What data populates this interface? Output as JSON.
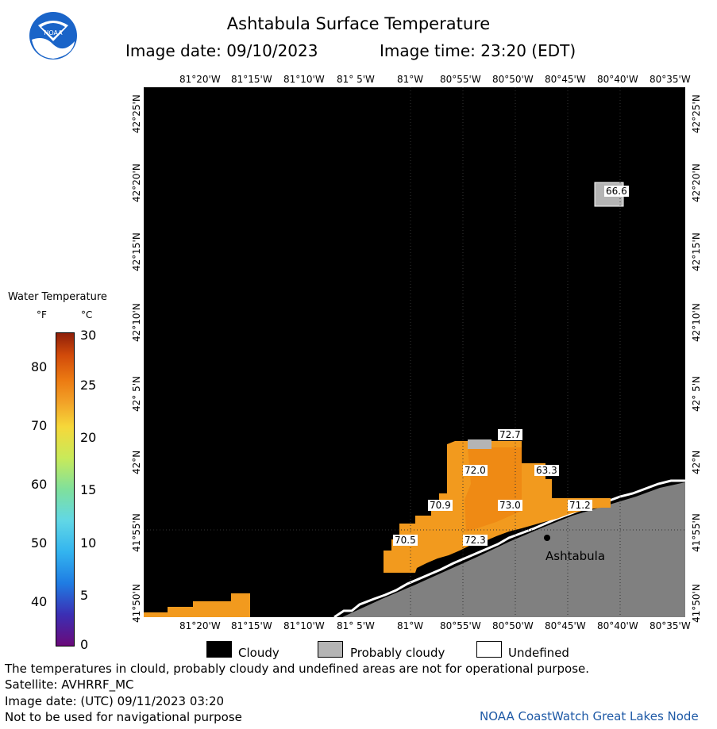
{
  "header": {
    "title": "Ashtabula Surface Temperature",
    "image_date": "Image date: 09/10/2023",
    "image_time": "Image time: 23:20 (EDT)",
    "logo_text": "NOAA"
  },
  "map": {
    "top_lon_labels": [
      "81°20'W",
      "81°15'W",
      "81°10'W",
      "81° 5'W",
      "81°W",
      "80°55'W",
      "80°50'W",
      "80°45'W",
      "80°40'W",
      "80°35'W"
    ],
    "bottom_lon_labels": [
      "81°20'W",
      "81°15'W",
      "81°10'W",
      "81° 5'W",
      "81°W",
      "80°55'W",
      "80°50'W",
      "80°45'W",
      "80°40'W",
      "80°35'W"
    ],
    "left_lat_labels": [
      "42°25'N",
      "42°20'N",
      "42°15'N",
      "42°10'N",
      "42° 5'N",
      "42°N",
      "41°55'N",
      "41°50'N"
    ],
    "right_lat_labels": [
      "42°25'N",
      "42°20'N",
      "42°15'N",
      "42°10'N",
      "42° 5'N",
      "42°N",
      "41°55'N",
      "41°50'N"
    ],
    "city": "Ashtabula",
    "temperature_labels": [
      "66.6",
      "72.7",
      "72.0",
      "63.3",
      "70.9",
      "73.0",
      "71.2",
      "70.5",
      "72.3"
    ],
    "colors": {
      "cloudy": "#000000",
      "land": "#808080",
      "probably_cloudy": "#b4b4b4",
      "warm_water": "#f29a1e",
      "warmer_water": "#ef8a14"
    }
  },
  "legend": {
    "title": "Water Temperature",
    "unit_f": "°F",
    "unit_c": "°C",
    "fahrenheit_ticks": [
      "80",
      "70",
      "60",
      "50",
      "40"
    ],
    "celsius_ticks": [
      "30",
      "25",
      "20",
      "15",
      "10",
      "5",
      "0"
    ],
    "colorbar_range_c": [
      0,
      30
    ]
  },
  "key": {
    "cloudy": "Cloudy",
    "probably_cloudy": "Probably cloudy",
    "undefined": "Undefined"
  },
  "footer": {
    "disclaimer": "The temperatures in clould, probably cloudy and undefined areas are not for operational purpose.",
    "satellite": "Satellite: AVHRRF_MC",
    "utc_date": "Image date: (UTC) 09/11/2023  03:20",
    "nav_warning": "Not to be used for navigational purpose",
    "node": "NOAA CoastWatch Great Lakes Node"
  }
}
